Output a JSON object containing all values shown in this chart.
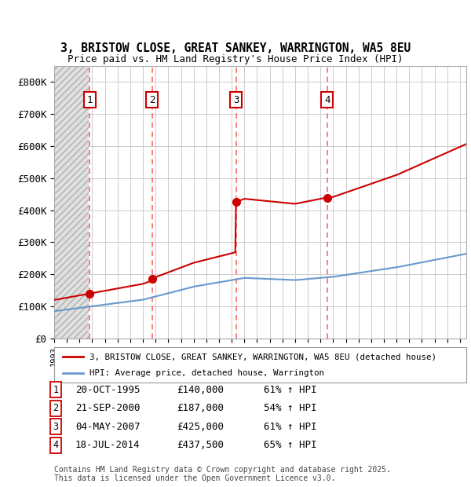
{
  "title_line1": "3, BRISTOW CLOSE, GREAT SANKEY, WARRINGTON, WA5 8EU",
  "title_line2": "Price paid vs. HM Land Registry's House Price Index (HPI)",
  "ylim": [
    0,
    850000
  ],
  "yticks": [
    0,
    100000,
    200000,
    300000,
    400000,
    500000,
    600000,
    700000,
    800000
  ],
  "ytick_labels": [
    "£0",
    "£100K",
    "£200K",
    "£300K",
    "£400K",
    "£500K",
    "£600K",
    "£700K",
    "£800K"
  ],
  "xlim_start": 1993.0,
  "xlim_end": 2025.5,
  "hatch_end": 1995.75,
  "sale_dates": [
    1995.8,
    2000.72,
    2007.34,
    2014.54
  ],
  "sale_prices": [
    140000,
    187000,
    425000,
    437500
  ],
  "sale_labels": [
    "1",
    "2",
    "3",
    "4"
  ],
  "red_line_color": "#cc0000",
  "blue_line_color": "#6699cc",
  "dashed_line_color": "#ff6666",
  "grid_color": "#cccccc",
  "legend_line1": "3, BRISTOW CLOSE, GREAT SANKEY, WARRINGTON, WA5 8EU (detached house)",
  "legend_line2": "HPI: Average price, detached house, Warrington",
  "table_entries": [
    {
      "num": "1",
      "date": "20-OCT-1995",
      "price": "£140,000",
      "hpi": "61% ↑ HPI"
    },
    {
      "num": "2",
      "date": "21-SEP-2000",
      "price": "£187,000",
      "hpi": "54% ↑ HPI"
    },
    {
      "num": "3",
      "date": "04-MAY-2007",
      "price": "£425,000",
      "hpi": "61% ↑ HPI"
    },
    {
      "num": "4",
      "date": "18-JUL-2014",
      "price": "£437,500",
      "hpi": "65% ↑ HPI"
    }
  ],
  "footnote1": "Contains HM Land Registry data © Crown copyright and database right 2025.",
  "footnote2": "This data is licensed under the Open Government Licence v3.0.",
  "bg_color": "#ffffff"
}
